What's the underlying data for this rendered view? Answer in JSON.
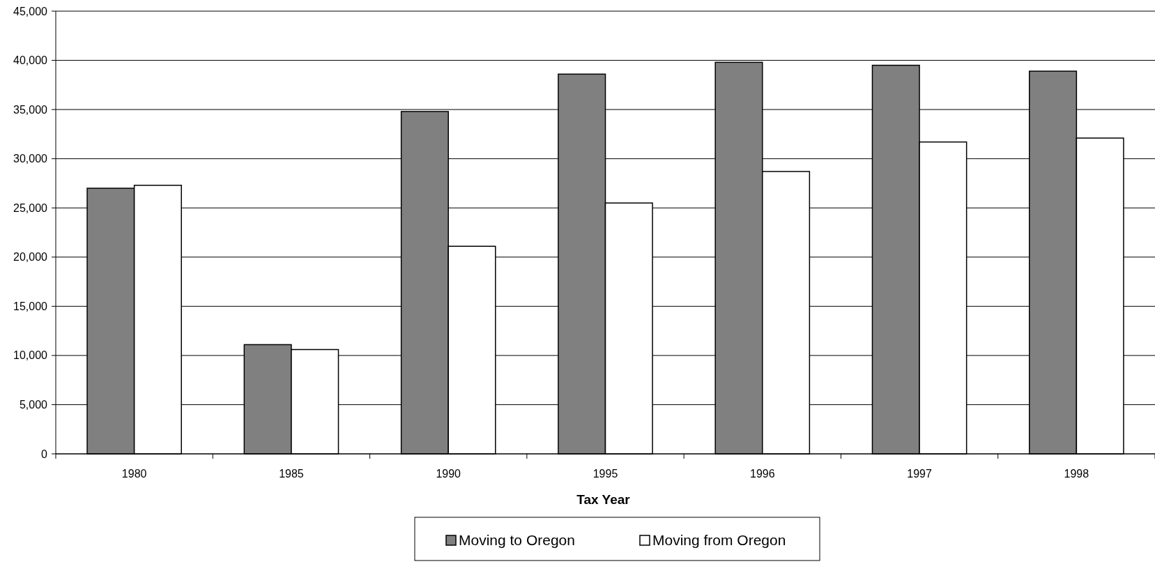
{
  "chart_data": {
    "type": "bar",
    "xlabel": "Tax Year",
    "categories": [
      "1980",
      "1985",
      "1990",
      "1995",
      "1996",
      "1997",
      "1998"
    ],
    "series": [
      {
        "name": "Moving to Oregon",
        "color": "#808080",
        "values": [
          27000,
          11100,
          34800,
          38600,
          39800,
          39500,
          38900
        ]
      },
      {
        "name": "Moving from Oregon",
        "color": "#ffffff",
        "values": [
          27300,
          10600,
          21100,
          25500,
          28700,
          31700,
          32100
        ]
      }
    ],
    "ylim": [
      0,
      45000
    ],
    "yticks": [
      {
        "value": 0,
        "label": "0"
      },
      {
        "value": 5000,
        "label": "5,000"
      },
      {
        "value": 10000,
        "label": "10,000"
      },
      {
        "value": 15000,
        "label": "15,000"
      },
      {
        "value": 20000,
        "label": "20,000"
      },
      {
        "value": 25000,
        "label": "25,000"
      },
      {
        "value": 30000,
        "label": "30,000"
      },
      {
        "value": 35000,
        "label": "35,000"
      },
      {
        "value": 40000,
        "label": "40,000"
      },
      {
        "value": 45000,
        "label": "45,000"
      }
    ],
    "grid": "y",
    "legend": "bottom"
  }
}
